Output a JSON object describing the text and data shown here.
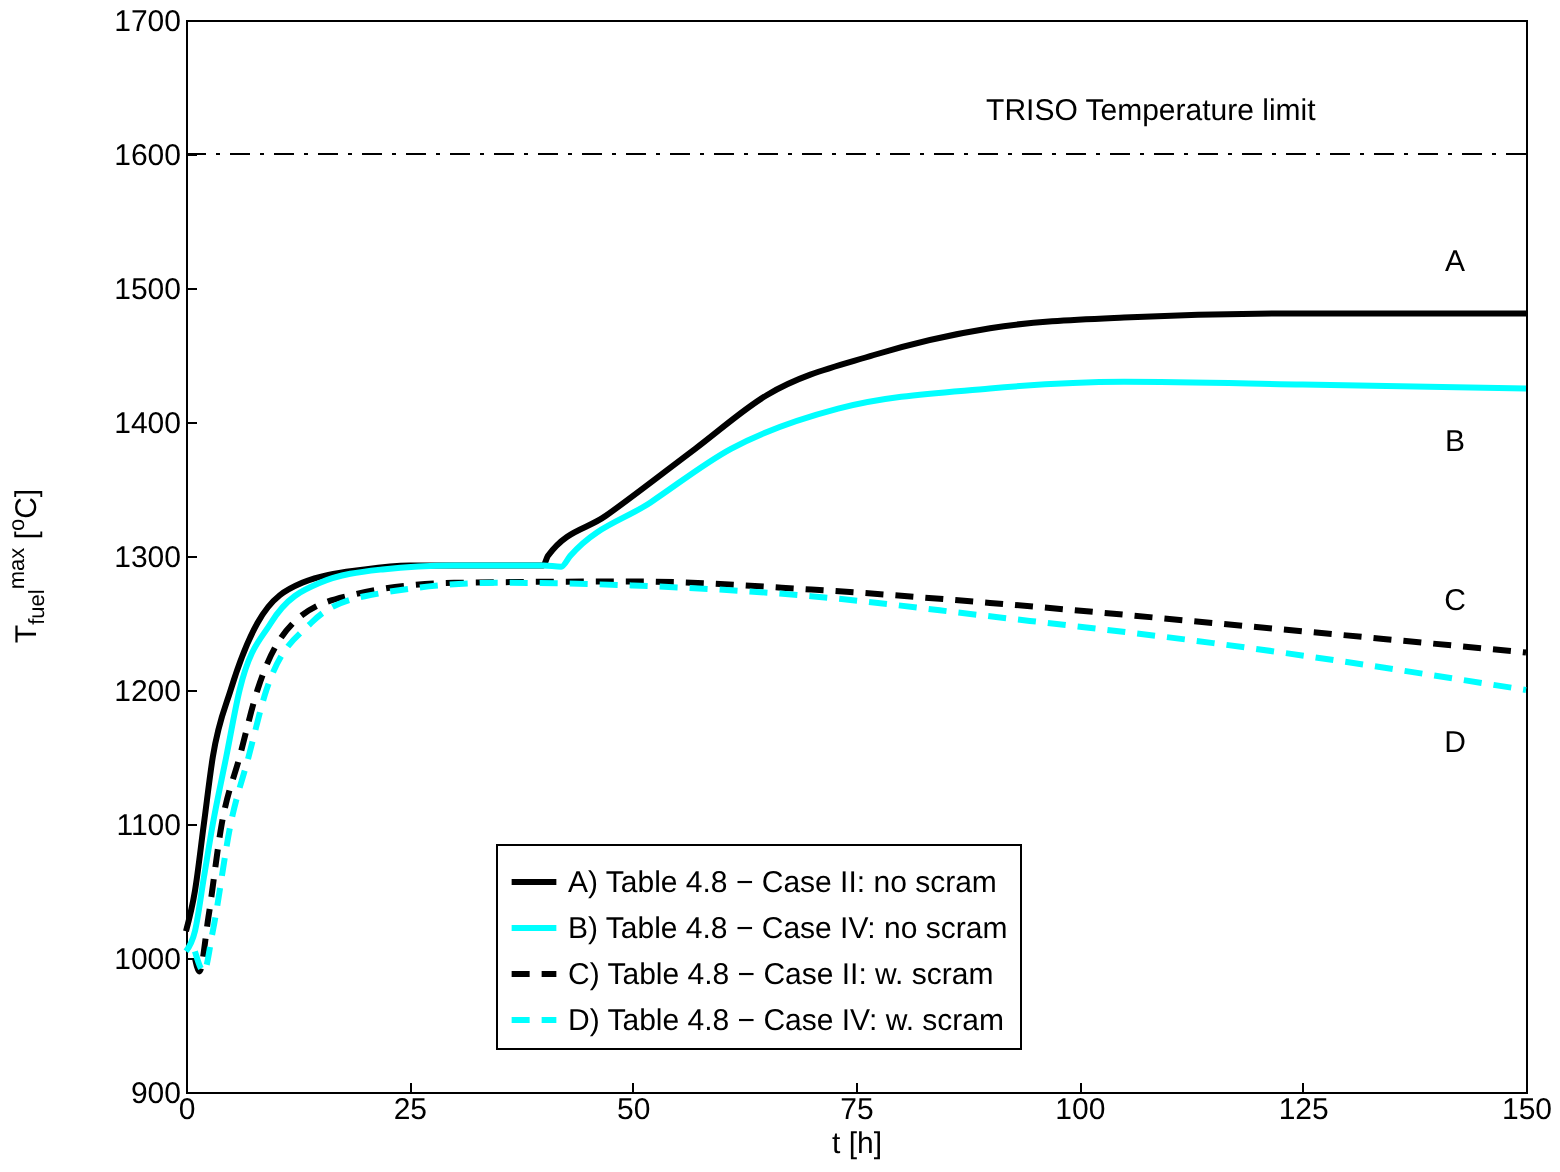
{
  "chart_data": {
    "type": "line",
    "xlabel": "t [h]",
    "ylabel": "T$_{fuel}$$^{max}$ [$^{o}$C]",
    "xlim": [
      0,
      150
    ],
    "ylim": [
      900,
      1700
    ],
    "xticks": [
      0,
      25,
      50,
      75,
      100,
      125,
      150
    ],
    "yticks": [
      900,
      1000,
      1100,
      1200,
      1300,
      1400,
      1500,
      1600,
      1700
    ],
    "grid": false,
    "legend": "bottom",
    "marker": "none",
    "series": [
      {
        "name": "A) Table 4.8 − Case II: no scram",
        "color": "#000000",
        "line_style": "solid",
        "x": [
          0,
          1,
          2,
          3,
          5,
          8,
          13,
          20,
          25,
          40,
          40.5,
          47,
          57,
          65,
          77,
          90,
          105,
          125,
          150
        ],
        "values": [
          1020,
          1050,
          1100,
          1150,
          1200,
          1250,
          1280,
          1290,
          1293,
          1293,
          1300,
          1330,
          1380,
          1420,
          1450,
          1470,
          1478,
          1481,
          1481
        ]
      },
      {
        "name": "B) Table 4.8 − Case IV: no scram",
        "color": "#00ffff",
        "line_style": "solid",
        "x": [
          0,
          1,
          2,
          3,
          4.5,
          6,
          9.5,
          15,
          22,
          30,
          40,
          42,
          43,
          52,
          61,
          73,
          90,
          105,
          125,
          150
        ],
        "values": [
          1005,
          1020,
          1060,
          1100,
          1150,
          1200,
          1250,
          1280,
          1290,
          1293,
          1293,
          1292,
          1300,
          1340,
          1380,
          1410,
          1425,
          1430,
          1428,
          1425
        ]
      },
      {
        "name": "C) Table 4.8 − Case II: w. scram",
        "color": "#000000",
        "line_style": "dashed",
        "x": [
          1,
          1.5,
          2.5,
          4,
          6,
          8,
          12,
          18,
          30,
          50,
          70,
          90,
          115,
          150
        ],
        "values": [
          1000,
          990,
          1030,
          1100,
          1150,
          1200,
          1250,
          1270,
          1280,
          1281,
          1275,
          1265,
          1250,
          1228
        ]
      },
      {
        "name": "D) Table 4.8 − Case IV: w. scram",
        "color": "#00ffff",
        "line_style": "dashed",
        "x": [
          1,
          2,
          3,
          5,
          7,
          9,
          14,
          20,
          35,
          50,
          70,
          90,
          115,
          150
        ],
        "values": [
          1005,
          990,
          1020,
          1100,
          1150,
          1200,
          1250,
          1270,
          1280,
          1278,
          1270,
          1255,
          1235,
          1200
        ]
      }
    ],
    "ref_lines": [
      {
        "axis": "y",
        "value": 1600,
        "label": "TRISO Temperature limit",
        "color": "#000000",
        "line_style": "dashdot"
      }
    ],
    "annotations": [
      "A",
      "B",
      "C",
      "D"
    ]
  }
}
